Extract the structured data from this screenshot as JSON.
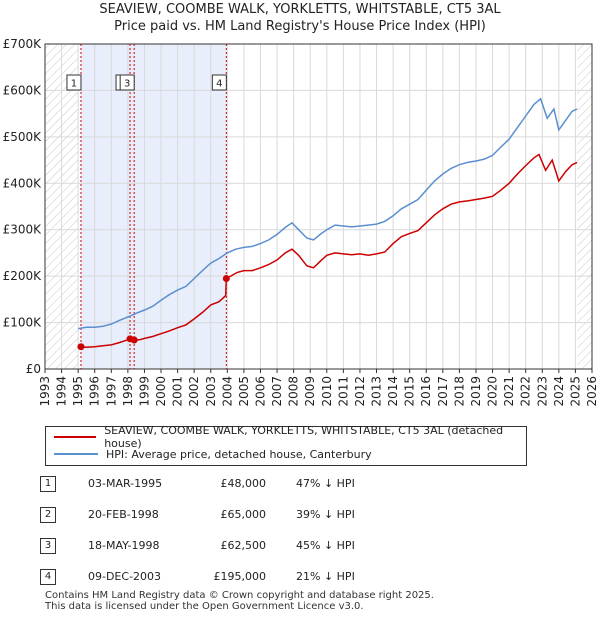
{
  "title_line1": "SEAVIEW, COOMBE WALK, YORKLETTS, WHITSTABLE, CT5 3AL",
  "title_line2": "Price paid vs. HM Land Registry's House Price Index (HPI)",
  "legend": {
    "property_label": "SEAVIEW, COOMBE WALK, YORKLETTS, WHITSTABLE, CT5 3AL (detached house)",
    "hpi_label": "HPI: Average price, detached house, Canterbury"
  },
  "transactions": [
    {
      "id": "1",
      "date": "03-MAR-1995",
      "price": "£48,000",
      "hpi": "47% ↓ HPI"
    },
    {
      "id": "2",
      "date": "20-FEB-1998",
      "price": "£65,000",
      "hpi": "39% ↓ HPI"
    },
    {
      "id": "3",
      "date": "18-MAY-1998",
      "price": "£62,500",
      "hpi": "45% ↓ HPI"
    },
    {
      "id": "4",
      "date": "09-DEC-2003",
      "price": "£195,000",
      "hpi": "21% ↓ HPI"
    }
  ],
  "footer_line1": "Contains HM Land Registry data © Crown copyright and database right 2025.",
  "footer_line2": "This data is licensed under the Open Government Licence v3.0.",
  "colors": {
    "property": "#cc0000",
    "hpi": "#5b8fcf",
    "shade": "#e8eefb"
  },
  "chart_data": {
    "type": "line",
    "title": "Price paid vs. HM Land Registry's House Price Index (HPI)",
    "xlim": [
      1993,
      2026
    ],
    "ylim": [
      0,
      700000
    ],
    "x_ticks": [
      "1993",
      "1994",
      "1995",
      "1996",
      "1997",
      "1998",
      "1999",
      "2000",
      "2001",
      "2002",
      "2003",
      "2004",
      "2005",
      "2006",
      "2007",
      "2008",
      "2009",
      "2010",
      "2011",
      "2012",
      "2013",
      "2014",
      "2015",
      "2016",
      "2017",
      "2018",
      "2019",
      "2020",
      "2021",
      "2022",
      "2023",
      "2024",
      "2025",
      "2026"
    ],
    "y_ticks": [
      {
        "value": 0,
        "label": "£0"
      },
      {
        "value": 100000,
        "label": "£100K"
      },
      {
        "value": 200000,
        "label": "£200K"
      },
      {
        "value": 300000,
        "label": "£300K"
      },
      {
        "value": 400000,
        "label": "£400K"
      },
      {
        "value": 500000,
        "label": "£500K"
      },
      {
        "value": 600000,
        "label": "£600K"
      },
      {
        "value": 700000,
        "label": "£700K"
      }
    ],
    "shaded_ranges": [
      [
        1995.17,
        2003.94
      ]
    ],
    "hatched_ranges": [
      [
        1993,
        1995.0
      ],
      [
        2025.1,
        2026
      ]
    ],
    "sale_markers": [
      {
        "label": "1",
        "x": 1995.17,
        "y": 48000
      },
      {
        "label": "2",
        "x": 1998.13,
        "y": 65000
      },
      {
        "label": "3",
        "x": 1998.38,
        "y": 62500
      },
      {
        "label": "4",
        "x": 2003.94,
        "y": 195000
      }
    ],
    "series": [
      {
        "name": "SEAVIEW, COOMBE WALK, YORKLETTS, WHITSTABLE, CT5 3AL (detached house)",
        "color": "#cc0000",
        "points": [
          [
            1995.17,
            48000
          ],
          [
            1995.5,
            47000
          ],
          [
            1996,
            48000
          ],
          [
            1996.5,
            50000
          ],
          [
            1997,
            52000
          ],
          [
            1997.5,
            57000
          ],
          [
            1998.0,
            63000
          ],
          [
            1998.13,
            65000
          ],
          [
            1998.38,
            62500
          ],
          [
            1998.7,
            63000
          ],
          [
            1999,
            66000
          ],
          [
            1999.5,
            70000
          ],
          [
            2000,
            76000
          ],
          [
            2000.5,
            82000
          ],
          [
            2001,
            89000
          ],
          [
            2001.5,
            95000
          ],
          [
            2002,
            108000
          ],
          [
            2002.5,
            122000
          ],
          [
            2003,
            138000
          ],
          [
            2003.5,
            145000
          ],
          [
            2003.9,
            158000
          ],
          [
            2003.94,
            195000
          ],
          [
            2004.2,
            200000
          ],
          [
            2004.6,
            208000
          ],
          [
            2005,
            212000
          ],
          [
            2005.5,
            212000
          ],
          [
            2006,
            218000
          ],
          [
            2006.5,
            225000
          ],
          [
            2007,
            235000
          ],
          [
            2007.5,
            250000
          ],
          [
            2007.9,
            258000
          ],
          [
            2008.3,
            245000
          ],
          [
            2008.8,
            222000
          ],
          [
            2009.2,
            218000
          ],
          [
            2009.6,
            232000
          ],
          [
            2010,
            245000
          ],
          [
            2010.5,
            250000
          ],
          [
            2011,
            248000
          ],
          [
            2011.5,
            246000
          ],
          [
            2012,
            248000
          ],
          [
            2012.5,
            245000
          ],
          [
            2013,
            248000
          ],
          [
            2013.5,
            252000
          ],
          [
            2014,
            270000
          ],
          [
            2014.5,
            285000
          ],
          [
            2015,
            292000
          ],
          [
            2015.5,
            298000
          ],
          [
            2016,
            315000
          ],
          [
            2016.5,
            332000
          ],
          [
            2017,
            345000
          ],
          [
            2017.5,
            355000
          ],
          [
            2018,
            360000
          ],
          [
            2018.5,
            362000
          ],
          [
            2019,
            365000
          ],
          [
            2019.5,
            368000
          ],
          [
            2020,
            372000
          ],
          [
            2020.5,
            385000
          ],
          [
            2021,
            400000
          ],
          [
            2021.5,
            420000
          ],
          [
            2022,
            438000
          ],
          [
            2022.5,
            455000
          ],
          [
            2022.8,
            462000
          ],
          [
            2023.2,
            428000
          ],
          [
            2023.6,
            450000
          ],
          [
            2024.0,
            405000
          ],
          [
            2024.4,
            425000
          ],
          [
            2024.8,
            440000
          ],
          [
            2025.1,
            445000
          ]
        ]
      },
      {
        "name": "HPI: Average price, detached house, Canterbury",
        "color": "#5b8fcf",
        "points": [
          [
            1995,
            87000
          ],
          [
            1995.5,
            90000
          ],
          [
            1996,
            90000
          ],
          [
            1996.5,
            92000
          ],
          [
            1997,
            97000
          ],
          [
            1997.5,
            105000
          ],
          [
            1998,
            112000
          ],
          [
            1998.5,
            120000
          ],
          [
            1999,
            127000
          ],
          [
            1999.5,
            135000
          ],
          [
            2000,
            148000
          ],
          [
            2000.5,
            160000
          ],
          [
            2001,
            170000
          ],
          [
            2001.5,
            178000
          ],
          [
            2002,
            195000
          ],
          [
            2002.5,
            212000
          ],
          [
            2003,
            228000
          ],
          [
            2003.5,
            238000
          ],
          [
            2004,
            250000
          ],
          [
            2004.5,
            258000
          ],
          [
            2005,
            262000
          ],
          [
            2005.5,
            264000
          ],
          [
            2006,
            270000
          ],
          [
            2006.5,
            278000
          ],
          [
            2007,
            290000
          ],
          [
            2007.5,
            305000
          ],
          [
            2007.9,
            315000
          ],
          [
            2008.3,
            300000
          ],
          [
            2008.8,
            282000
          ],
          [
            2009.2,
            278000
          ],
          [
            2009.6,
            290000
          ],
          [
            2010,
            300000
          ],
          [
            2010.5,
            310000
          ],
          [
            2011,
            308000
          ],
          [
            2011.5,
            306000
          ],
          [
            2012,
            308000
          ],
          [
            2012.5,
            310000
          ],
          [
            2013,
            312000
          ],
          [
            2013.5,
            318000
          ],
          [
            2014,
            330000
          ],
          [
            2014.5,
            345000
          ],
          [
            2015,
            355000
          ],
          [
            2015.5,
            365000
          ],
          [
            2016,
            385000
          ],
          [
            2016.5,
            405000
          ],
          [
            2017,
            420000
          ],
          [
            2017.5,
            432000
          ],
          [
            2018,
            440000
          ],
          [
            2018.5,
            445000
          ],
          [
            2019,
            448000
          ],
          [
            2019.5,
            452000
          ],
          [
            2020,
            460000
          ],
          [
            2020.5,
            478000
          ],
          [
            2021,
            495000
          ],
          [
            2021.5,
            520000
          ],
          [
            2022,
            545000
          ],
          [
            2022.5,
            570000
          ],
          [
            2022.9,
            582000
          ],
          [
            2023.3,
            540000
          ],
          [
            2023.7,
            560000
          ],
          [
            2024.0,
            515000
          ],
          [
            2024.4,
            535000
          ],
          [
            2024.8,
            555000
          ],
          [
            2025.1,
            560000
          ]
        ]
      }
    ]
  }
}
